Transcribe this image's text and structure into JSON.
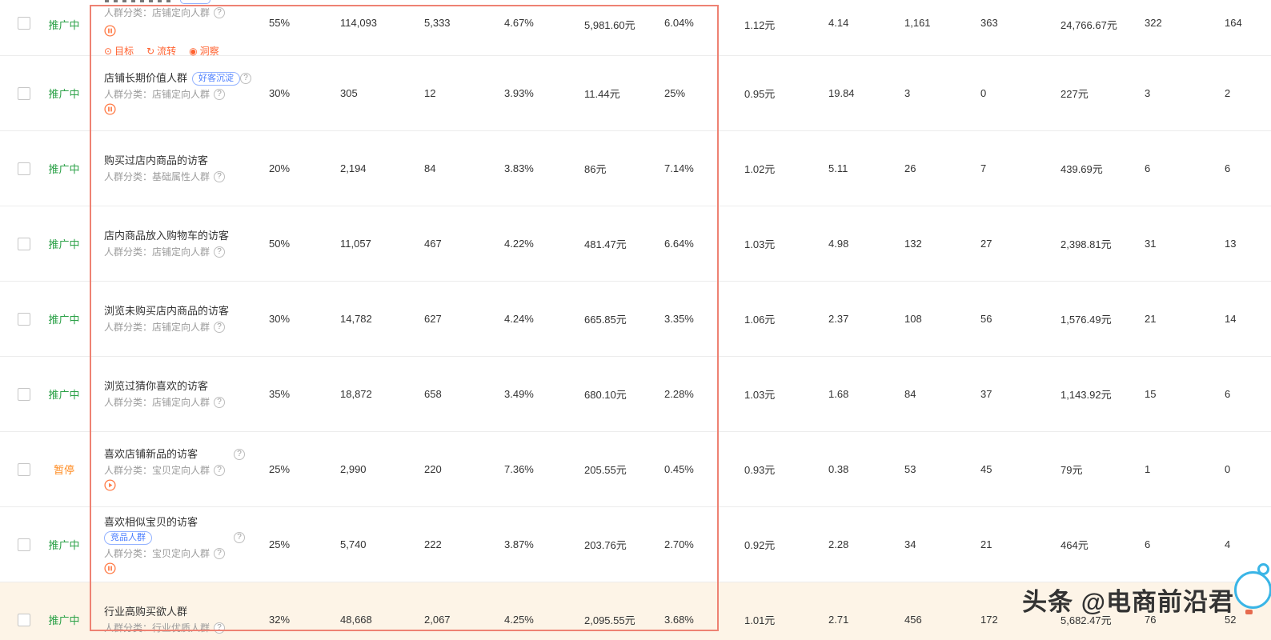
{
  "watermark": {
    "text": "头条 @电商前沿君"
  },
  "category_prefix": "人群分类：",
  "help_glyph": "?",
  "actions": [
    {
      "icon": "target",
      "glyph": "⊙",
      "label": "目标"
    },
    {
      "icon": "loop",
      "glyph": "↻",
      "label": "流转"
    },
    {
      "icon": "eye",
      "glyph": "◉",
      "label": "洞察"
    }
  ],
  "colors": {
    "status_active": "#2ba147",
    "status_paused": "#ff8a1e",
    "action_orange": "#ff6230",
    "badge_blue": "#4a7dff",
    "annotation_red": "#ee8273"
  },
  "rows": [
    {
      "status": "推广中",
      "state": "active",
      "clip_top": true,
      "name": "",
      "category": "店铺定向人群",
      "control": "pause",
      "show_actions": true,
      "values": [
        "55%",
        "114,093",
        "5,333",
        "4.67%",
        "5,981.60元",
        "6.04%",
        "1.12元",
        "4.14",
        "1,161",
        "363",
        "24,766.67元",
        "322",
        "164"
      ]
    },
    {
      "status": "推广中",
      "state": "active",
      "name": "店铺长期价值人群",
      "badge": "好客沉淀",
      "badge_pos": "inline",
      "name_help": true,
      "category": "店铺定向人群",
      "control": "pause",
      "values": [
        "30%",
        "305",
        "12",
        "3.93%",
        "11.44元",
        "25%",
        "0.95元",
        "19.84",
        "3",
        "0",
        "227元",
        "3",
        "2"
      ]
    },
    {
      "status": "推广中",
      "state": "active",
      "name": "购买过店内商品的访客",
      "category": "基础属性人群",
      "values": [
        "20%",
        "2,194",
        "84",
        "3.83%",
        "86元",
        "7.14%",
        "1.02元",
        "5.11",
        "26",
        "7",
        "439.69元",
        "6",
        "6"
      ]
    },
    {
      "status": "推广中",
      "state": "active",
      "name": "店内商品放入购物车的访客",
      "category": "店铺定向人群",
      "values": [
        "50%",
        "11,057",
        "467",
        "4.22%",
        "481.47元",
        "6.64%",
        "1.03元",
        "4.98",
        "132",
        "27",
        "2,398.81元",
        "31",
        "13"
      ]
    },
    {
      "status": "推广中",
      "state": "active",
      "name": "浏览未购买店内商品的访客",
      "category": "店铺定向人群",
      "values": [
        "30%",
        "14,782",
        "627",
        "4.24%",
        "665.85元",
        "3.35%",
        "1.06元",
        "2.37",
        "108",
        "56",
        "1,576.49元",
        "21",
        "14"
      ]
    },
    {
      "status": "推广中",
      "state": "active",
      "name": "浏览过猜你喜欢的访客",
      "category": "店铺定向人群",
      "values": [
        "35%",
        "18,872",
        "658",
        "3.49%",
        "680.10元",
        "2.28%",
        "1.03元",
        "1.68",
        "84",
        "37",
        "1,143.92元",
        "15",
        "6"
      ]
    },
    {
      "status": "暂停",
      "state": "paused",
      "name": "喜欢店铺新品的访客",
      "name_help": true,
      "category": "宝贝定向人群",
      "control": "play",
      "values": [
        "25%",
        "2,990",
        "220",
        "7.36%",
        "205.55元",
        "0.45%",
        "0.93元",
        "0.38",
        "53",
        "45",
        "79元",
        "1",
        "0"
      ]
    },
    {
      "status": "推广中",
      "state": "active",
      "name": "喜欢相似宝贝的访客",
      "badge": "竞品人群",
      "badge_pos": "below",
      "badge_help": true,
      "category": "宝贝定向人群",
      "control": "pause",
      "values": [
        "25%",
        "5,740",
        "222",
        "3.87%",
        "203.76元",
        "2.70%",
        "0.92元",
        "2.28",
        "34",
        "21",
        "464元",
        "6",
        "4"
      ]
    },
    {
      "status": "推广中",
      "state": "active",
      "name": "行业高购买欲人群",
      "category": "行业优质人群",
      "highlight": true,
      "values": [
        "32%",
        "48,668",
        "2,067",
        "4.25%",
        "2,095.55元",
        "3.68%",
        "1.01元",
        "2.71",
        "456",
        "172",
        "5,682.47元",
        "76",
        "52"
      ]
    }
  ]
}
